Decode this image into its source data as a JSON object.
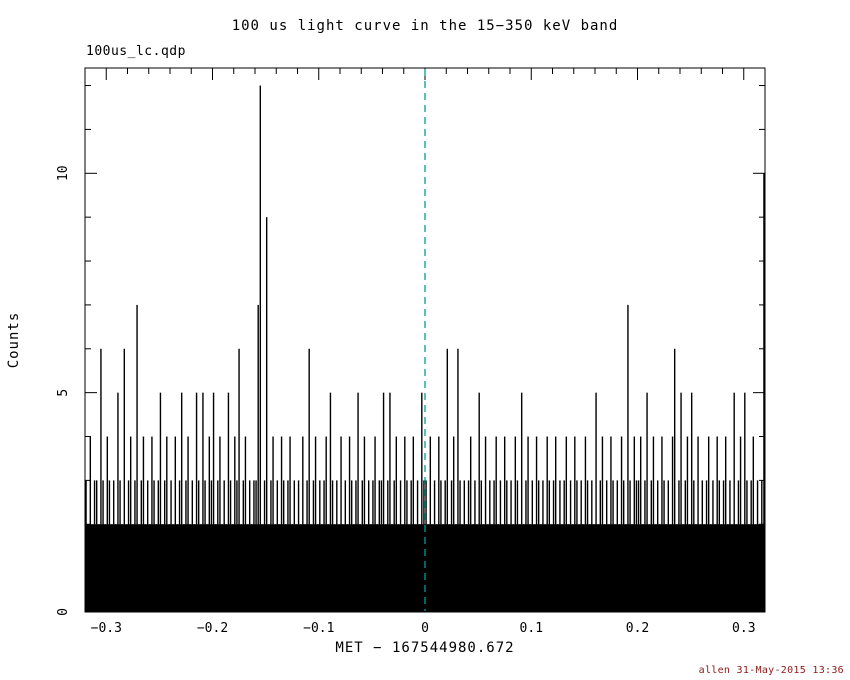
{
  "chart_data": {
    "type": "bar",
    "title": "100 us light curve in the 15−350 keV band",
    "filename": "100us_lc.qdp",
    "xlabel": "MET − 167544980.672",
    "ylabel": "Counts",
    "stamp": "allen 31-May-2015 13:36",
    "xlim": [
      -0.32,
      0.32
    ],
    "ylim": [
      0,
      12.4
    ],
    "xtick_values": [
      -0.3,
      -0.2,
      -0.1,
      0,
      0.1,
      0.2,
      0.3
    ],
    "xtick_labels": [
      "−0.3",
      "−0.2",
      "−0.1",
      "0",
      "0.1",
      "0.2",
      "0.3"
    ],
    "ytick_values": [
      0,
      5,
      10
    ],
    "ytick_labels": [
      "0",
      "5",
      "10"
    ],
    "x_minor_step": 0.02,
    "y_minor_step": 1,
    "bin_width": 0.002,
    "baseline_fill_level": 2,
    "marker_line": {
      "x": 0,
      "color": "#009E9E",
      "style": "dashed"
    },
    "colors": {
      "bars": "#000000",
      "axis": "#000000",
      "background": "#ffffff",
      "stamp": "#8B1A1A"
    },
    "counts": [
      3,
      2,
      4,
      2,
      3,
      3,
      2,
      6,
      3,
      2,
      4,
      3,
      2,
      3,
      2,
      5,
      3,
      2,
      6,
      2,
      3,
      4,
      2,
      3,
      7,
      2,
      3,
      4,
      2,
      3,
      2,
      4,
      3,
      2,
      3,
      5,
      2,
      3,
      4,
      2,
      3,
      2,
      4,
      2,
      3,
      5,
      2,
      3,
      4,
      2,
      3,
      2,
      5,
      3,
      2,
      5,
      3,
      2,
      4,
      3,
      5,
      2,
      3,
      4,
      2,
      3,
      2,
      5,
      3,
      2,
      4,
      3,
      6,
      2,
      3,
      4,
      2,
      3,
      2,
      3,
      3,
      7,
      12,
      2,
      3,
      9,
      2,
      3,
      4,
      2,
      3,
      2,
      4,
      3,
      2,
      3,
      4,
      2,
      3,
      2,
      3,
      2,
      4,
      2,
      3,
      6,
      2,
      3,
      4,
      2,
      3,
      2,
      3,
      4,
      2,
      5,
      3,
      2,
      3,
      2,
      4,
      2,
      3,
      2,
      4,
      3,
      2,
      3,
      5,
      2,
      3,
      4,
      2,
      3,
      2,
      3,
      4,
      2,
      3,
      3,
      5,
      2,
      3,
      5,
      2,
      3,
      4,
      2,
      3,
      2,
      4,
      3,
      2,
      3,
      4,
      2,
      3,
      2,
      5,
      3,
      3,
      2,
      4,
      2,
      3,
      2,
      4,
      3,
      2,
      3,
      6,
      2,
      3,
      4,
      2,
      6,
      3,
      2,
      3,
      2,
      3,
      4,
      2,
      3,
      2,
      5,
      3,
      2,
      4,
      2,
      3,
      2,
      3,
      4,
      2,
      3,
      2,
      4,
      3,
      2,
      3,
      2,
      4,
      3,
      2,
      5,
      2,
      3,
      4,
      2,
      3,
      2,
      4,
      3,
      2,
      3,
      2,
      4,
      3,
      2,
      3,
      4,
      2,
      3,
      2,
      3,
      4,
      2,
      3,
      2,
      4,
      3,
      2,
      3,
      2,
      4,
      3,
      2,
      3,
      2,
      5,
      2,
      3,
      4,
      2,
      3,
      2,
      4,
      3,
      2,
      3,
      2,
      4,
      3,
      2,
      7,
      3,
      2,
      4,
      3,
      3,
      4,
      2,
      3,
      5,
      2,
      3,
      4,
      2,
      3,
      2,
      4,
      3,
      2,
      3,
      2,
      4,
      6,
      2,
      3,
      5,
      2,
      3,
      4,
      2,
      5,
      3,
      2,
      4,
      2,
      3,
      2,
      3,
      4,
      2,
      3,
      2,
      4,
      3,
      2,
      3,
      4,
      2,
      3,
      2,
      5,
      2,
      3,
      4,
      2,
      5,
      3,
      2,
      3,
      4,
      2,
      3,
      2,
      3,
      10
    ]
  }
}
